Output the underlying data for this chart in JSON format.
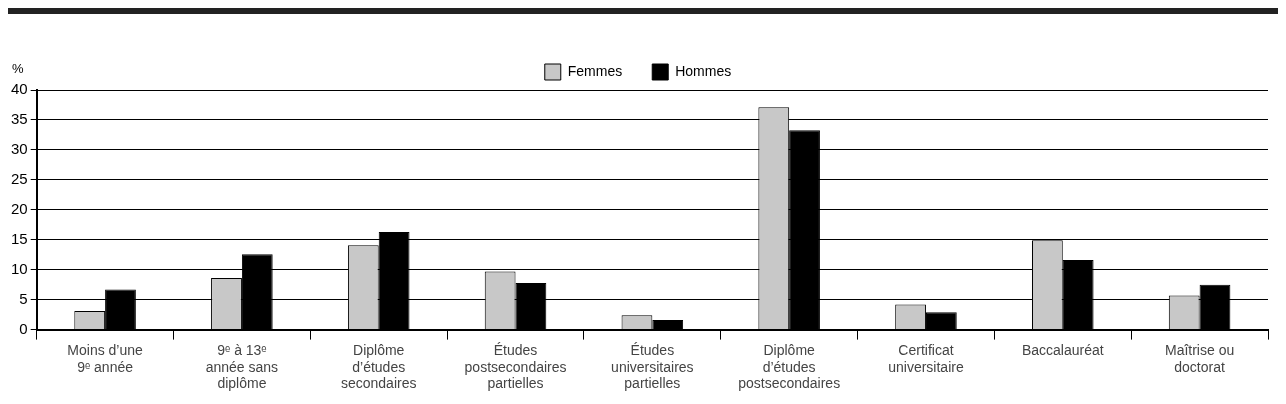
{
  "chart_data": {
    "type": "bar",
    "ylabel": "%",
    "categories": [
      "Moins d’une 9ᵉ année",
      "9ᵉ à 13ᵉ année sans diplôme",
      "Diplôme d’études secondaires",
      "Études postsecondaires partielles",
      "Études universitaires partielles",
      "Diplôme d’études postsecondaires",
      "Certificat universitaire",
      "Baccalauréat",
      "Maîtrise ou doctorat"
    ],
    "series": [
      {
        "name": "Femmes",
        "color": "#c8c8c8",
        "values": [
          3.1,
          8.6,
          14.1,
          9.7,
          2.4,
          37.1,
          4.2,
          14.9,
          5.7
        ]
      },
      {
        "name": "Hommes",
        "color": "#000000",
        "values": [
          6.7,
          12.6,
          16.3,
          7.8,
          1.6,
          33.3,
          2.9,
          11.6,
          7.5
        ]
      }
    ],
    "ylim": [
      0,
      40
    ],
    "yticks": [
      0,
      5,
      10,
      15,
      20,
      25,
      30,
      35,
      40
    ],
    "grid": "y",
    "legend": "top"
  }
}
